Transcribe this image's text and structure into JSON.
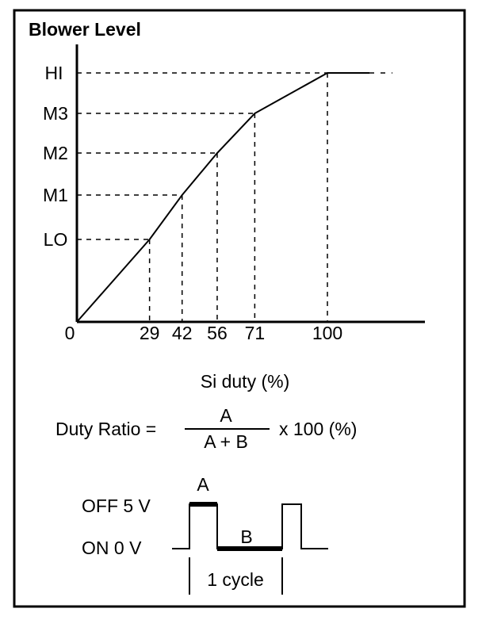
{
  "title": "Blower Level",
  "chart_data": {
    "type": "line",
    "x_ticks": [
      "29",
      "42",
      "56",
      "71",
      "100"
    ],
    "origin_label": "0",
    "y_levels": [
      "LO",
      "M1",
      "M2",
      "M3",
      "HI"
    ],
    "series": [
      {
        "x": [
          0,
          29,
          42,
          56,
          71,
          100
        ],
        "y": [
          "0",
          "LO",
          "M1",
          "M2",
          "M3",
          "HI"
        ]
      }
    ],
    "xlabel": "Si duty (%)"
  },
  "formula": {
    "lhs": "Duty Ratio =",
    "numerator": "A",
    "denominator": "A + B",
    "rhs": "x 100 (%)"
  },
  "waveform": {
    "off_label": "OFF 5 V",
    "on_label": "ON 0 V",
    "a_label": "A",
    "b_label": "B",
    "cycle_label": "1 cycle"
  },
  "colors": {
    "ink": "#000000",
    "background": "#ffffff"
  }
}
